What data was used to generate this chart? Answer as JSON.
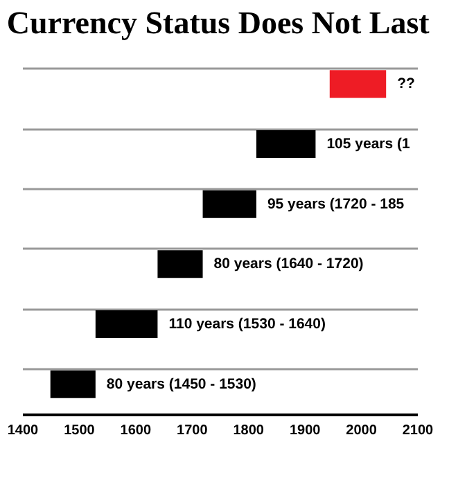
{
  "chart_data": {
    "type": "bar",
    "orientation": "horizontal",
    "title": "Currency Status Does Not Last",
    "categories": [
      null,
      null,
      null,
      null,
      null,
      null
    ],
    "base": [
      1945,
      1815,
      1720,
      1640,
      1530,
      1450
    ],
    "values": [
      100,
      105,
      95,
      80,
      110,
      80
    ],
    "colors": [
      "#ee1c25",
      "#000000",
      "#000000",
      "#000000",
      "#000000",
      "#000000"
    ],
    "value_labels": [
      "??",
      "105 years (1",
      "95 years (1720 - 185",
      "80 years (1640 - 1720)",
      "110 years (1530 - 1640)",
      "80 years (1450 - 1530)"
    ],
    "xlim": [
      1400,
      2100
    ],
    "xticks": [
      1400,
      1500,
      1600,
      1700,
      1800,
      1900,
      2000,
      2100
    ],
    "grid": "y",
    "tick_labels": "x"
  }
}
